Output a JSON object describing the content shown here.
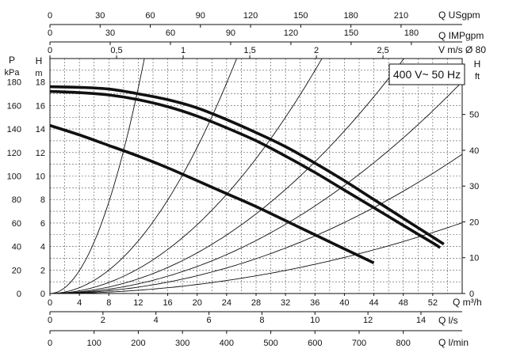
{
  "chart_data": {
    "type": "line",
    "badge": "400 V~ 50 Hz",
    "x_axis": {
      "label": "Q m³/h",
      "ticks": [
        0,
        4,
        8,
        12,
        16,
        20,
        24,
        28,
        32,
        36,
        40,
        44,
        48,
        52
      ],
      "range": [
        0,
        56
      ]
    },
    "secondary_x_axes": [
      {
        "name": "usgpm",
        "label": "Q USgpm",
        "position": "top",
        "factor": 4.4029,
        "ticks": [
          0,
          30,
          60,
          90,
          120,
          150,
          180,
          210
        ]
      },
      {
        "name": "impgpm",
        "label": "Q IMPgpm",
        "position": "top",
        "factor": 3.6662,
        "ticks": [
          0,
          30,
          60,
          90,
          120,
          150,
          180
        ]
      },
      {
        "name": "velocity",
        "label": "V m/s Ø 80",
        "position": "top",
        "factor": 0.05526,
        "ticks": [
          "0",
          "0,5",
          "1",
          "1,5",
          "2",
          "2,5"
        ],
        "tick_values": [
          0,
          0.5,
          1,
          1.5,
          2,
          2.5
        ]
      },
      {
        "name": "ls",
        "label": "Q l/s",
        "position": "bottom",
        "factor": 0.27778,
        "ticks": [
          0,
          2,
          4,
          6,
          8,
          10,
          12,
          14
        ]
      },
      {
        "name": "lmin",
        "label": "Q l/min",
        "position": "bottom",
        "factor": 16.6667,
        "ticks": [
          0,
          100,
          200,
          300,
          400,
          500,
          600,
          700,
          800
        ]
      }
    ],
    "y_axis": {
      "label_top": "H",
      "label_unit": "m",
      "ticks": [
        0,
        2,
        4,
        6,
        8,
        10,
        12,
        14,
        16,
        18
      ],
      "range": [
        0,
        20
      ]
    },
    "pressure_axis": {
      "label_top": "P",
      "label_unit": "kPa",
      "ticks": [
        0,
        20,
        40,
        60,
        80,
        100,
        120,
        140,
        160,
        180
      ]
    },
    "right_axis": {
      "label_top": "H",
      "label_unit": "ft",
      "ticks": [
        0,
        10,
        20,
        30,
        40,
        50
      ],
      "factor": 3.2808
    },
    "series": [
      {
        "points": [
          [
            0,
            17.6
          ],
          [
            4,
            17.55
          ],
          [
            8,
            17.4
          ],
          [
            12,
            17.0
          ],
          [
            16,
            16.5
          ],
          [
            20,
            15.8
          ],
          [
            24,
            14.8
          ],
          [
            28,
            13.7
          ],
          [
            32,
            12.5
          ],
          [
            36,
            11.1
          ],
          [
            40,
            9.6
          ],
          [
            44,
            8.0
          ],
          [
            48,
            6.4
          ],
          [
            52,
            4.8
          ],
          [
            53.5,
            4.2
          ]
        ]
      },
      {
        "points": [
          [
            0,
            17.2
          ],
          [
            4,
            17.1
          ],
          [
            8,
            16.9
          ],
          [
            12,
            16.5
          ],
          [
            16,
            15.9
          ],
          [
            20,
            15.1
          ],
          [
            24,
            14.1
          ],
          [
            28,
            13.0
          ],
          [
            32,
            11.7
          ],
          [
            36,
            10.3
          ],
          [
            40,
            8.8
          ],
          [
            44,
            7.3
          ],
          [
            48,
            5.8
          ],
          [
            52,
            4.3
          ],
          [
            53,
            3.9
          ]
        ]
      },
      {
        "points": [
          [
            0,
            14.3
          ],
          [
            4,
            13.5
          ],
          [
            8,
            12.6
          ],
          [
            12,
            11.7
          ],
          [
            16,
            10.7
          ],
          [
            20,
            9.6
          ],
          [
            24,
            8.5
          ],
          [
            28,
            7.4
          ],
          [
            32,
            6.2
          ],
          [
            36,
            5.0
          ],
          [
            40,
            3.8
          ],
          [
            44,
            2.6
          ]
        ]
      }
    ],
    "system_curves": [
      {
        "k": 0.1216
      },
      {
        "k": 0.0311
      },
      {
        "k": 0.01465
      },
      {
        "k": 0.00865
      },
      {
        "k": 0.00575
      },
      {
        "k": 0.00378
      },
      {
        "k": 0.00192
      }
    ],
    "grid": true
  }
}
